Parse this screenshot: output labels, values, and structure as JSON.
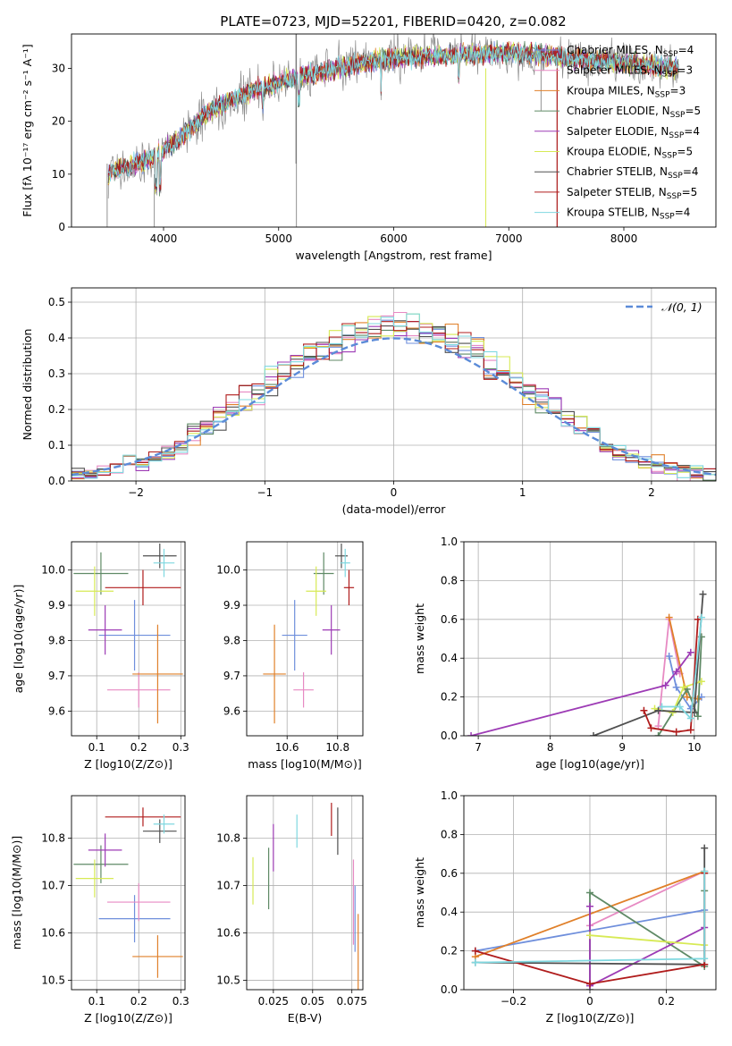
{
  "figure": {
    "title": "PLATE=0723, MJD=52201, FIBERID=0420, z=0.082"
  },
  "models": [
    {
      "name": "Chabrier MILES",
      "n": "4",
      "color": "#6f8fdc"
    },
    {
      "name": "Salpeter MILES",
      "n": "3",
      "color": "#e78ac3"
    },
    {
      "name": "Kroupa MILES",
      "n": "3",
      "color": "#e0802a"
    },
    {
      "name": "Chabrier ELODIE",
      "n": "5",
      "color": "#5f8a66"
    },
    {
      "name": "Salpeter ELODIE",
      "n": "4",
      "color": "#9d3bb5"
    },
    {
      "name": "Kroupa ELODIE",
      "n": "5",
      "color": "#d7ea55"
    },
    {
      "name": "Chabrier STELIB",
      "n": "4",
      "color": "#505050"
    },
    {
      "name": "Salpeter STELIB",
      "n": "5",
      "color": "#b01c1c"
    },
    {
      "name": "Kroupa STELIB",
      "n": "4",
      "color": "#7fd8e0"
    }
  ],
  "chart_data": [
    {
      "id": "spectrum",
      "type": "line",
      "xlabel": "wavelength [Angstrom, rest frame]",
      "ylabel": "Flux [fλ 10⁻¹⁷ erg cm⁻² s⁻¹ A⁻¹]",
      "xlim": [
        3200,
        8800
      ],
      "ylim": [
        0,
        36.5
      ],
      "xticks": [
        4000,
        5000,
        6000,
        7000,
        8000
      ],
      "yticks": [
        0,
        10,
        20,
        30
      ],
      "continuum": {
        "x": [
          3500,
          3900,
          4100,
          4400,
          4800,
          5200,
          5600,
          6000,
          6500,
          7000,
          7500,
          8000,
          8500
        ],
        "y": [
          10,
          13,
          16,
          22,
          26,
          28.5,
          30.5,
          32,
          32.5,
          33,
          32,
          31,
          30
        ]
      },
      "legend_suffix": "N_SSP="
    },
    {
      "id": "residuals",
      "type": "histogram",
      "xlabel": "(data-model)/error",
      "ylabel": "Normed distribution",
      "xlim": [
        -2.5,
        2.5
      ],
      "ylim": [
        0,
        0.54
      ],
      "xticks": [
        -2,
        -1,
        0,
        1,
        2
      ],
      "yticks": [
        0.0,
        0.1,
        0.2,
        0.3,
        0.4,
        0.5
      ],
      "reference_curve": {
        "name": "𝒩(0, 1)",
        "color": "#5b8bd8"
      },
      "bin_width": 0.1
    },
    {
      "id": "z-vs-age",
      "type": "scatter",
      "xlabel": "Z [log10(Z/Z⊙)]",
      "ylabel": "age  [log10(age/yr)]",
      "xlim": [
        0.04,
        0.31
      ],
      "ylim": [
        9.53,
        10.08
      ],
      "xticks": [
        0.1,
        0.2,
        0.3
      ],
      "yticks": [
        9.6,
        9.7,
        9.8,
        9.9,
        10.0
      ],
      "points": [
        {
          "x": 0.19,
          "y": 9.815,
          "xerr": 0.085,
          "yerr": 0.1
        },
        {
          "x": 0.2,
          "y": 9.66,
          "xerr": 0.075,
          "yerr": 0.05
        },
        {
          "x": 0.245,
          "y": 9.705,
          "xerr": 0.06,
          "yerr": 0.14
        },
        {
          "x": 0.11,
          "y": 9.99,
          "xerr": 0.065,
          "yerr": 0.06
        },
        {
          "x": 0.12,
          "y": 9.83,
          "xerr": 0.04,
          "yerr": 0.07
        },
        {
          "x": 0.095,
          "y": 9.94,
          "xerr": 0.045,
          "yerr": 0.07
        },
        {
          "x": 0.25,
          "y": 10.04,
          "xerr": 0.04,
          "yerr": 0.035
        },
        {
          "x": 0.21,
          "y": 9.95,
          "xerr": 0.09,
          "yerr": 0.05
        },
        {
          "x": 0.26,
          "y": 10.02,
          "xerr": 0.025,
          "yerr": 0.04
        }
      ]
    },
    {
      "id": "mass-vs-age",
      "type": "scatter",
      "xlabel": "mass [log10(M/M⊙)]",
      "xlim": [
        10.44,
        10.9
      ],
      "ylim": [
        9.53,
        10.08
      ],
      "xticks": [
        10.6,
        10.8
      ],
      "yticks": [
        9.6,
        9.7,
        9.8,
        9.9,
        10.0
      ],
      "points": [
        {
          "x": 10.63,
          "y": 9.815,
          "xerr": 0.05,
          "yerr": 0.1
        },
        {
          "x": 10.665,
          "y": 9.66,
          "xerr": 0.04,
          "yerr": 0.05
        },
        {
          "x": 10.55,
          "y": 9.705,
          "xerr": 0.045,
          "yerr": 0.14
        },
        {
          "x": 10.745,
          "y": 9.99,
          "xerr": 0.04,
          "yerr": 0.06
        },
        {
          "x": 10.775,
          "y": 9.83,
          "xerr": 0.035,
          "yerr": 0.07
        },
        {
          "x": 10.715,
          "y": 9.94,
          "xerr": 0.04,
          "yerr": 0.07
        },
        {
          "x": 10.815,
          "y": 10.04,
          "xerr": 0.025,
          "yerr": 0.035
        },
        {
          "x": 10.845,
          "y": 9.95,
          "xerr": 0.02,
          "yerr": 0.05
        },
        {
          "x": 10.83,
          "y": 10.02,
          "xerr": 0.02,
          "yerr": 0.04
        }
      ]
    },
    {
      "id": "age-weights",
      "type": "line",
      "xlabel": "age  [log10(age/yr)]",
      "ylabel": "mass weight",
      "xlim": [
        6.8,
        10.3
      ],
      "ylim": [
        0,
        1
      ],
      "xticks": [
        7,
        8,
        9,
        10
      ],
      "yticks": [
        0.0,
        0.2,
        0.4,
        0.6,
        0.8,
        1.0
      ],
      "series": [
        {
          "x": [
            9.65,
            9.75,
            9.95,
            10.1
          ],
          "y": [
            0.41,
            0.25,
            0.14,
            0.2
          ]
        },
        {
          "x": [
            9.5,
            9.65,
            9.8
          ],
          "y": [
            0.05,
            0.6,
            0.32
          ]
        },
        {
          "x": [
            9.65,
            9.9,
            10.05
          ],
          "y": [
            0.61,
            0.2,
            0.19
          ]
        },
        {
          "x": [
            9.5,
            9.7,
            9.9,
            10.05,
            10.1
          ],
          "y": [
            0.0,
            0.12,
            0.24,
            0.1,
            0.51
          ]
        },
        {
          "x": [
            6.9,
            9.6,
            9.75,
            9.95
          ],
          "y": [
            0.0,
            0.26,
            0.33,
            0.43
          ]
        },
        {
          "x": [
            9.45,
            9.7,
            9.85,
            10.1
          ],
          "y": [
            0.14,
            0.12,
            0.25,
            0.28
          ]
        },
        {
          "x": [
            8.6,
            9.5,
            10.0,
            10.12
          ],
          "y": [
            0.0,
            0.13,
            0.12,
            0.73
          ]
        },
        {
          "x": [
            9.3,
            9.4,
            9.75,
            9.95,
            10.05
          ],
          "y": [
            0.13,
            0.04,
            0.02,
            0.03,
            0.6
          ]
        },
        {
          "x": [
            9.55,
            9.8,
            9.95,
            10.1
          ],
          "y": [
            0.15,
            0.15,
            0.09,
            0.61
          ]
        }
      ]
    },
    {
      "id": "z-vs-mass",
      "type": "scatter",
      "xlabel": "Z [log10(Z/Z⊙)]",
      "ylabel": "mass [log10(M/M⊙)]",
      "xlim": [
        0.04,
        0.31
      ],
      "ylim": [
        10.48,
        10.89
      ],
      "xticks": [
        0.1,
        0.2,
        0.3
      ],
      "yticks": [
        10.5,
        10.6,
        10.7,
        10.8
      ],
      "points": [
        {
          "x": 0.19,
          "y": 10.63,
          "xerr": 0.085,
          "yerr": 0.05
        },
        {
          "x": 0.2,
          "y": 10.665,
          "xerr": 0.075,
          "yerr": 0.04
        },
        {
          "x": 0.245,
          "y": 10.55,
          "xerr": 0.06,
          "yerr": 0.045
        },
        {
          "x": 0.11,
          "y": 10.745,
          "xerr": 0.065,
          "yerr": 0.04
        },
        {
          "x": 0.12,
          "y": 10.775,
          "xerr": 0.04,
          "yerr": 0.035
        },
        {
          "x": 0.095,
          "y": 10.715,
          "xerr": 0.045,
          "yerr": 0.04
        },
        {
          "x": 0.25,
          "y": 10.815,
          "xerr": 0.04,
          "yerr": 0.025
        },
        {
          "x": 0.21,
          "y": 10.845,
          "xerr": 0.09,
          "yerr": 0.02
        },
        {
          "x": 0.26,
          "y": 10.83,
          "xerr": 0.025,
          "yerr": 0.02
        }
      ]
    },
    {
      "id": "ebv-vs-mass",
      "type": "scatter",
      "xlabel": "E(B-V)",
      "xlim": [
        0.008,
        0.082
      ],
      "ylim": [
        10.48,
        10.89
      ],
      "xticks": [
        0.025,
        0.05,
        0.075
      ],
      "yticks": [
        10.5,
        10.6,
        10.7,
        10.8
      ],
      "points": [
        {
          "x": 0.077,
          "y": 10.63,
          "xerr": 0,
          "yerr": 0.07
        },
        {
          "x": 0.076,
          "y": 10.665,
          "xerr": 0,
          "yerr": 0.09
        },
        {
          "x": 0.079,
          "y": 10.55,
          "xerr": 0,
          "yerr": 0.09
        },
        {
          "x": 0.022,
          "y": 10.715,
          "xerr": 0,
          "yerr": 0.065
        },
        {
          "x": 0.025,
          "y": 10.78,
          "xerr": 0,
          "yerr": 0.05
        },
        {
          "x": 0.012,
          "y": 10.71,
          "xerr": 0,
          "yerr": 0.05
        },
        {
          "x": 0.066,
          "y": 10.815,
          "xerr": 0,
          "yerr": 0.05
        },
        {
          "x": 0.062,
          "y": 10.84,
          "xerr": 0,
          "yerr": 0.035
        },
        {
          "x": 0.04,
          "y": 10.815,
          "xerr": 0,
          "yerr": 0.035
        }
      ]
    },
    {
      "id": "z-weights",
      "type": "line",
      "xlabel": "Z [log10(Z/Z⊙)]",
      "ylabel": "mass weight",
      "xlim": [
        -0.33,
        0.33
      ],
      "ylim": [
        0,
        1
      ],
      "xticks": [
        -0.2,
        0.0,
        0.2
      ],
      "yticks": [
        0.0,
        0.2,
        0.4,
        0.6,
        0.8,
        1.0
      ],
      "series": [
        {
          "x": [
            -0.3,
            0.3
          ],
          "y": [
            0.2,
            0.41
          ]
        },
        {
          "x": [
            0.0,
            0.3
          ],
          "y": [
            0.33,
            0.61
          ]
        },
        {
          "x": [
            -0.3,
            0.3
          ],
          "y": [
            0.17,
            0.61
          ]
        },
        {
          "x": [
            0.0,
            0.0,
            0.3,
            0.3
          ],
          "y": [
            0.0,
            0.5,
            0.12,
            0.51
          ]
        },
        {
          "x": [
            0.0,
            0.0,
            0.3
          ],
          "y": [
            0.43,
            0.02,
            0.32
          ]
        },
        {
          "x": [
            0.0,
            0.3
          ],
          "y": [
            0.28,
            0.23
          ]
        },
        {
          "x": [
            -0.3,
            0.3,
            0.3
          ],
          "y": [
            0.14,
            0.13,
            0.73
          ]
        },
        {
          "x": [
            -0.3,
            0.0,
            0.3,
            0.3
          ],
          "y": [
            0.2,
            0.03,
            0.13,
            0.6
          ]
        },
        {
          "x": [
            -0.3,
            0.3,
            0.3
          ],
          "y": [
            0.14,
            0.16,
            0.61
          ]
        }
      ]
    }
  ]
}
